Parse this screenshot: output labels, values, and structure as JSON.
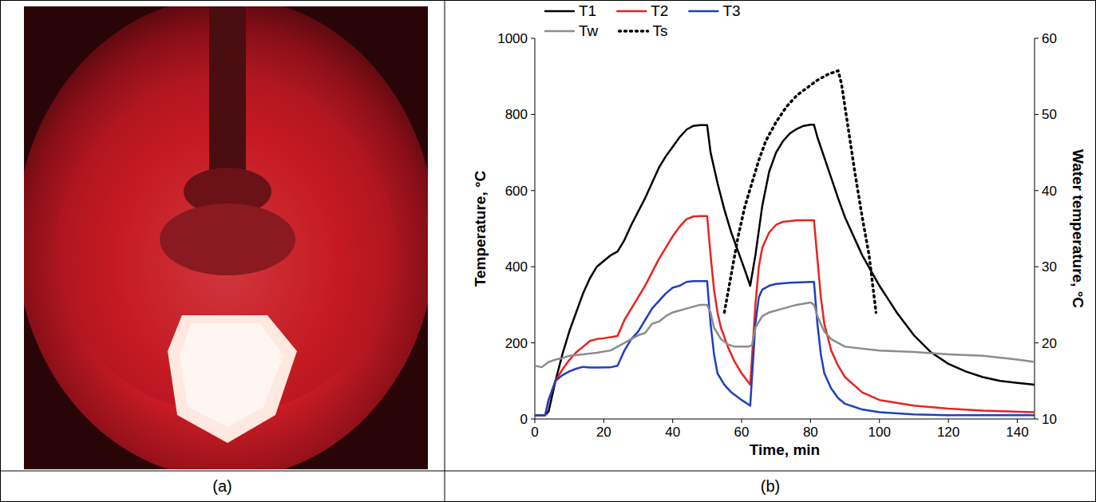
{
  "figure": {
    "labels": [
      "(a)",
      "(b)"
    ]
  },
  "chart_data": {
    "type": "line",
    "xlabel": "Time, min",
    "ylabel": "Temperature, °C",
    "y2label": "Water temperature, °C",
    "xlim": [
      0,
      145
    ],
    "xticks": [
      0,
      20,
      40,
      60,
      80,
      100,
      120,
      140
    ],
    "ylim": [
      0,
      1000
    ],
    "yticks": [
      0,
      200,
      400,
      600,
      800,
      1000
    ],
    "y2lim": [
      10,
      60
    ],
    "y2ticks": [
      10,
      20,
      30,
      40,
      50,
      60
    ],
    "grid": false,
    "legend": "top-left",
    "series": [
      {
        "name": "T1",
        "color": "#000000",
        "line_style": "solid",
        "marker": "none",
        "x": [
          0,
          3,
          4,
          6,
          8,
          10,
          12,
          14,
          16,
          18,
          20,
          22,
          24,
          26,
          28,
          30,
          32,
          34,
          36,
          38,
          40,
          42,
          44,
          46,
          48,
          50,
          51,
          53,
          55,
          57,
          59,
          61,
          62.5,
          64,
          66,
          68,
          70,
          72,
          74,
          76,
          78,
          80,
          81,
          82,
          85,
          88,
          90,
          95,
          100,
          105,
          110,
          115,
          120,
          125,
          130,
          135,
          140,
          145
        ],
        "values": [
          10,
          10,
          20,
          100,
          170,
          230,
          280,
          330,
          370,
          400,
          415,
          430,
          440,
          470,
          510,
          545,
          580,
          620,
          660,
          690,
          715,
          740,
          760,
          770,
          772,
          772,
          700,
          620,
          550,
          490,
          440,
          390,
          350,
          430,
          560,
          650,
          700,
          730,
          750,
          762,
          770,
          773,
          773,
          740,
          660,
          580,
          530,
          430,
          350,
          280,
          220,
          175,
          145,
          125,
          110,
          100,
          95,
          90
        ]
      },
      {
        "name": "T2",
        "color": "#e8231f",
        "line_style": "solid",
        "marker": "none",
        "x": [
          0,
          3,
          4,
          6,
          8,
          10,
          12,
          14,
          16,
          18,
          20,
          22,
          24,
          26,
          28,
          30,
          32,
          34,
          36,
          38,
          40,
          42,
          44,
          46,
          48,
          50,
          51,
          52,
          53,
          54,
          56,
          58,
          60,
          62.5,
          64,
          65,
          66,
          68,
          70,
          72,
          76,
          80,
          81,
          82,
          83,
          84,
          86,
          88,
          90,
          95,
          100,
          110,
          120,
          130,
          145
        ],
        "values": [
          10,
          10,
          50,
          100,
          130,
          155,
          175,
          190,
          205,
          210,
          212,
          215,
          218,
          260,
          290,
          320,
          350,
          385,
          420,
          450,
          480,
          505,
          525,
          532,
          533,
          533,
          430,
          340,
          280,
          240,
          190,
          150,
          120,
          90,
          300,
          400,
          450,
          490,
          510,
          518,
          522,
          522,
          522,
          420,
          320,
          250,
          180,
          140,
          110,
          70,
          50,
          35,
          27,
          22,
          18
        ]
      },
      {
        "name": "T3",
        "color": "#1f3fbf",
        "line_style": "solid",
        "marker": "none",
        "x": [
          0,
          3,
          4,
          6,
          8,
          10,
          12,
          14,
          16,
          18,
          22,
          24,
          26,
          28,
          30,
          32,
          34,
          36,
          38,
          40,
          42,
          44,
          46,
          48,
          50,
          51,
          52,
          53,
          55,
          57,
          60,
          62.5,
          64,
          65,
          66,
          68,
          70,
          74,
          80,
          81,
          82,
          83,
          84,
          86,
          88,
          90,
          95,
          100,
          110,
          120,
          145
        ],
        "values": [
          10,
          10,
          50,
          100,
          115,
          125,
          132,
          137,
          135,
          135,
          136,
          140,
          180,
          210,
          230,
          260,
          290,
          310,
          330,
          345,
          350,
          360,
          362,
          362,
          362,
          250,
          170,
          120,
          90,
          70,
          50,
          35,
          250,
          320,
          340,
          350,
          355,
          358,
          360,
          360,
          250,
          170,
          120,
          80,
          55,
          40,
          25,
          18,
          12,
          10,
          10
        ]
      },
      {
        "name": "Tw",
        "color": "#8c8c8c",
        "line_style": "solid",
        "marker": "none",
        "axis": "y2",
        "x": [
          0,
          2,
          4,
          6,
          8,
          10,
          14,
          18,
          22,
          24,
          26,
          30,
          32,
          34,
          36,
          38,
          40,
          44,
          48,
          50,
          51,
          52,
          54,
          56,
          58,
          62,
          63,
          64,
          66,
          68,
          72,
          76,
          80,
          81,
          82,
          84,
          86,
          90,
          100,
          110,
          120,
          130,
          140,
          145
        ],
        "values": [
          17,
          16.8,
          17.5,
          17.8,
          18,
          18.3,
          18.5,
          18.7,
          19,
          19.5,
          20,
          21,
          21.3,
          22.5,
          22.8,
          23.5,
          24,
          24.5,
          25,
          25,
          24,
          22,
          20.5,
          19.8,
          19.5,
          19.5,
          19.7,
          22,
          23.5,
          24,
          24.5,
          25,
          25.3,
          25,
          23.5,
          21.5,
          20.5,
          19.5,
          19,
          18.8,
          18.5,
          18.3,
          17.8,
          17.5
        ]
      },
      {
        "name": "Ts",
        "color": "#000000",
        "line_style": "dotted",
        "marker": "none",
        "x": [
          55,
          57,
          59,
          61,
          63,
          65,
          67,
          70,
          73,
          76,
          79,
          82,
          85,
          88,
          89,
          91,
          93,
          95,
          97,
          99
        ],
        "values": [
          280,
          380,
          480,
          560,
          620,
          680,
          730,
          780,
          820,
          850,
          870,
          890,
          905,
          915,
          880,
          760,
          640,
          530,
          430,
          280
        ]
      }
    ]
  }
}
